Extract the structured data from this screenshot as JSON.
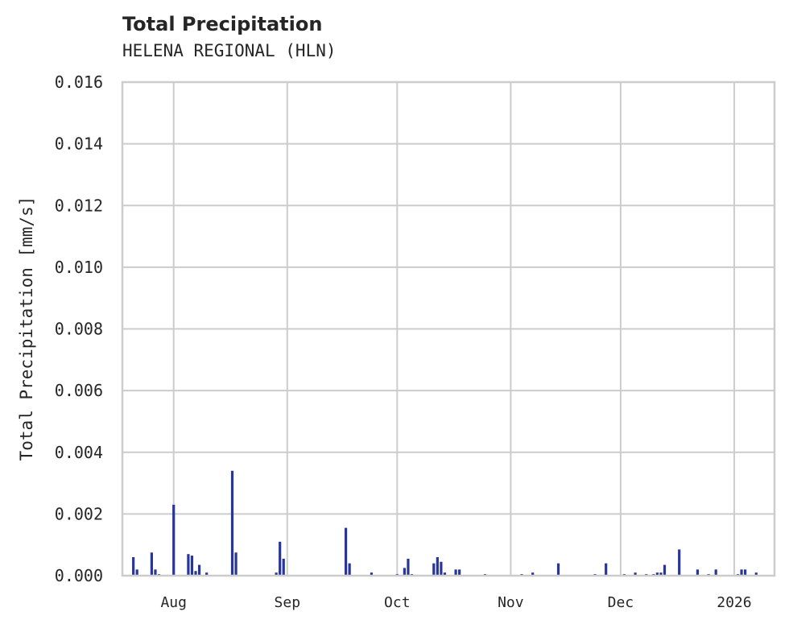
{
  "header": {
    "title": "Total Precipitation",
    "subtitle": "HELENA REGIONAL (HLN)"
  },
  "axes": {
    "ylabel": "Total Precipitation [mm/s]",
    "yticks": [
      "0.000",
      "0.002",
      "0.004",
      "0.006",
      "0.008",
      "0.010",
      "0.012",
      "0.014",
      "0.016"
    ],
    "xticks": [
      "Aug",
      "Sep",
      "Oct",
      "Nov",
      "Dec",
      "2026"
    ]
  },
  "colors": {
    "bar": "#28369a",
    "grid": "#cccccc",
    "text": "#262626"
  },
  "chart_data": {
    "type": "bar",
    "title": "Total Precipitation",
    "subtitle": "HELENA REGIONAL (HLN)",
    "xlabel": "",
    "ylabel": "Total Precipitation [mm/s]",
    "ylim": [
      0,
      0.016
    ],
    "xrange": [
      "2025-07-18",
      "2026-01-12"
    ],
    "grid": true,
    "legend": null,
    "x_tick_labels": [
      "Aug",
      "Sep",
      "Oct",
      "Nov",
      "Dec",
      "2026"
    ],
    "y_tick_labels": [
      "0.000",
      "0.002",
      "0.004",
      "0.006",
      "0.008",
      "0.010",
      "0.012",
      "0.014",
      "0.016"
    ],
    "x": [
      "2025-07-21",
      "2025-07-22",
      "2025-07-26",
      "2025-07-27",
      "2025-07-28",
      "2025-08-01",
      "2025-08-05",
      "2025-08-06",
      "2025-08-07",
      "2025-08-08",
      "2025-08-10",
      "2025-08-17",
      "2025-08-18",
      "2025-08-29",
      "2025-08-30",
      "2025-08-31",
      "2025-09-17",
      "2025-09-18",
      "2025-09-24",
      "2025-10-01",
      "2025-10-03",
      "2025-10-04",
      "2025-10-05",
      "2025-10-11",
      "2025-10-12",
      "2025-10-13",
      "2025-10-14",
      "2025-10-17",
      "2025-10-18",
      "2025-10-25",
      "2025-11-04",
      "2025-11-07",
      "2025-11-14",
      "2025-11-24",
      "2025-11-27",
      "2025-12-02",
      "2025-12-05",
      "2025-12-08",
      "2025-12-10",
      "2025-12-11",
      "2025-12-12",
      "2025-12-13",
      "2025-12-17",
      "2025-12-22",
      "2025-12-25",
      "2025-12-27",
      "2026-01-02",
      "2026-01-03",
      "2026-01-04",
      "2026-01-07"
    ],
    "values": [
      0.0006,
      0.0002,
      0.00075,
      0.0002,
      5e-05,
      0.0023,
      0.0007,
      0.00065,
      0.00015,
      0.00035,
      0.0001,
      0.0034,
      0.00075,
      0.0001,
      0.0011,
      0.00055,
      0.00155,
      0.0004,
      0.0001,
      5e-05,
      0.00025,
      0.00055,
      5e-05,
      0.0004,
      0.0006,
      0.00045,
      0.0001,
      0.0002,
      0.0002,
      5e-05,
      5e-05,
      0.0001,
      0.0004,
      5e-05,
      0.0004,
      5e-05,
      0.0001,
      5e-05,
      5e-05,
      0.0001,
      0.0001,
      0.00035,
      0.00085,
      0.0002,
      5e-05,
      0.0002,
      5e-05,
      0.0002,
      0.0002,
      0.0001
    ]
  }
}
